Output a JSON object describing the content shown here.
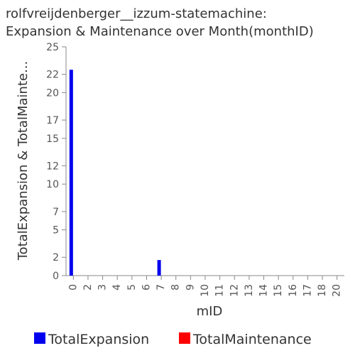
{
  "chart_data": {
    "type": "bar",
    "title_lines": [
      "rolfvreijdenberger__izzum-statemachine:",
      "Expansion & Maintenance over Month(monthID)"
    ],
    "xlabel": "mID",
    "ylabel": "TotalExpansion & TotalMainte...",
    "ylim": [
      0,
      25
    ],
    "y_ticks": [
      "0",
      "2",
      "5",
      "7",
      "10",
      "12",
      "15",
      "17",
      "20",
      "22",
      "25"
    ],
    "x_ticks": [
      "0",
      "2",
      "3",
      "4",
      "5",
      "6",
      "7",
      "8",
      "9",
      "10",
      "11",
      "12",
      "13",
      "14",
      "15",
      "16",
      "17",
      "18",
      "20"
    ],
    "categories": [
      "0",
      "7"
    ],
    "series": [
      {
        "name": "TotalExpansion",
        "color": "#0000ee",
        "values": [
          22.5,
          1.7
        ]
      },
      {
        "name": "TotalMaintenance",
        "color": "#ff0000",
        "values": [
          0,
          0
        ]
      }
    ],
    "legend": "bottom",
    "grid": false
  }
}
